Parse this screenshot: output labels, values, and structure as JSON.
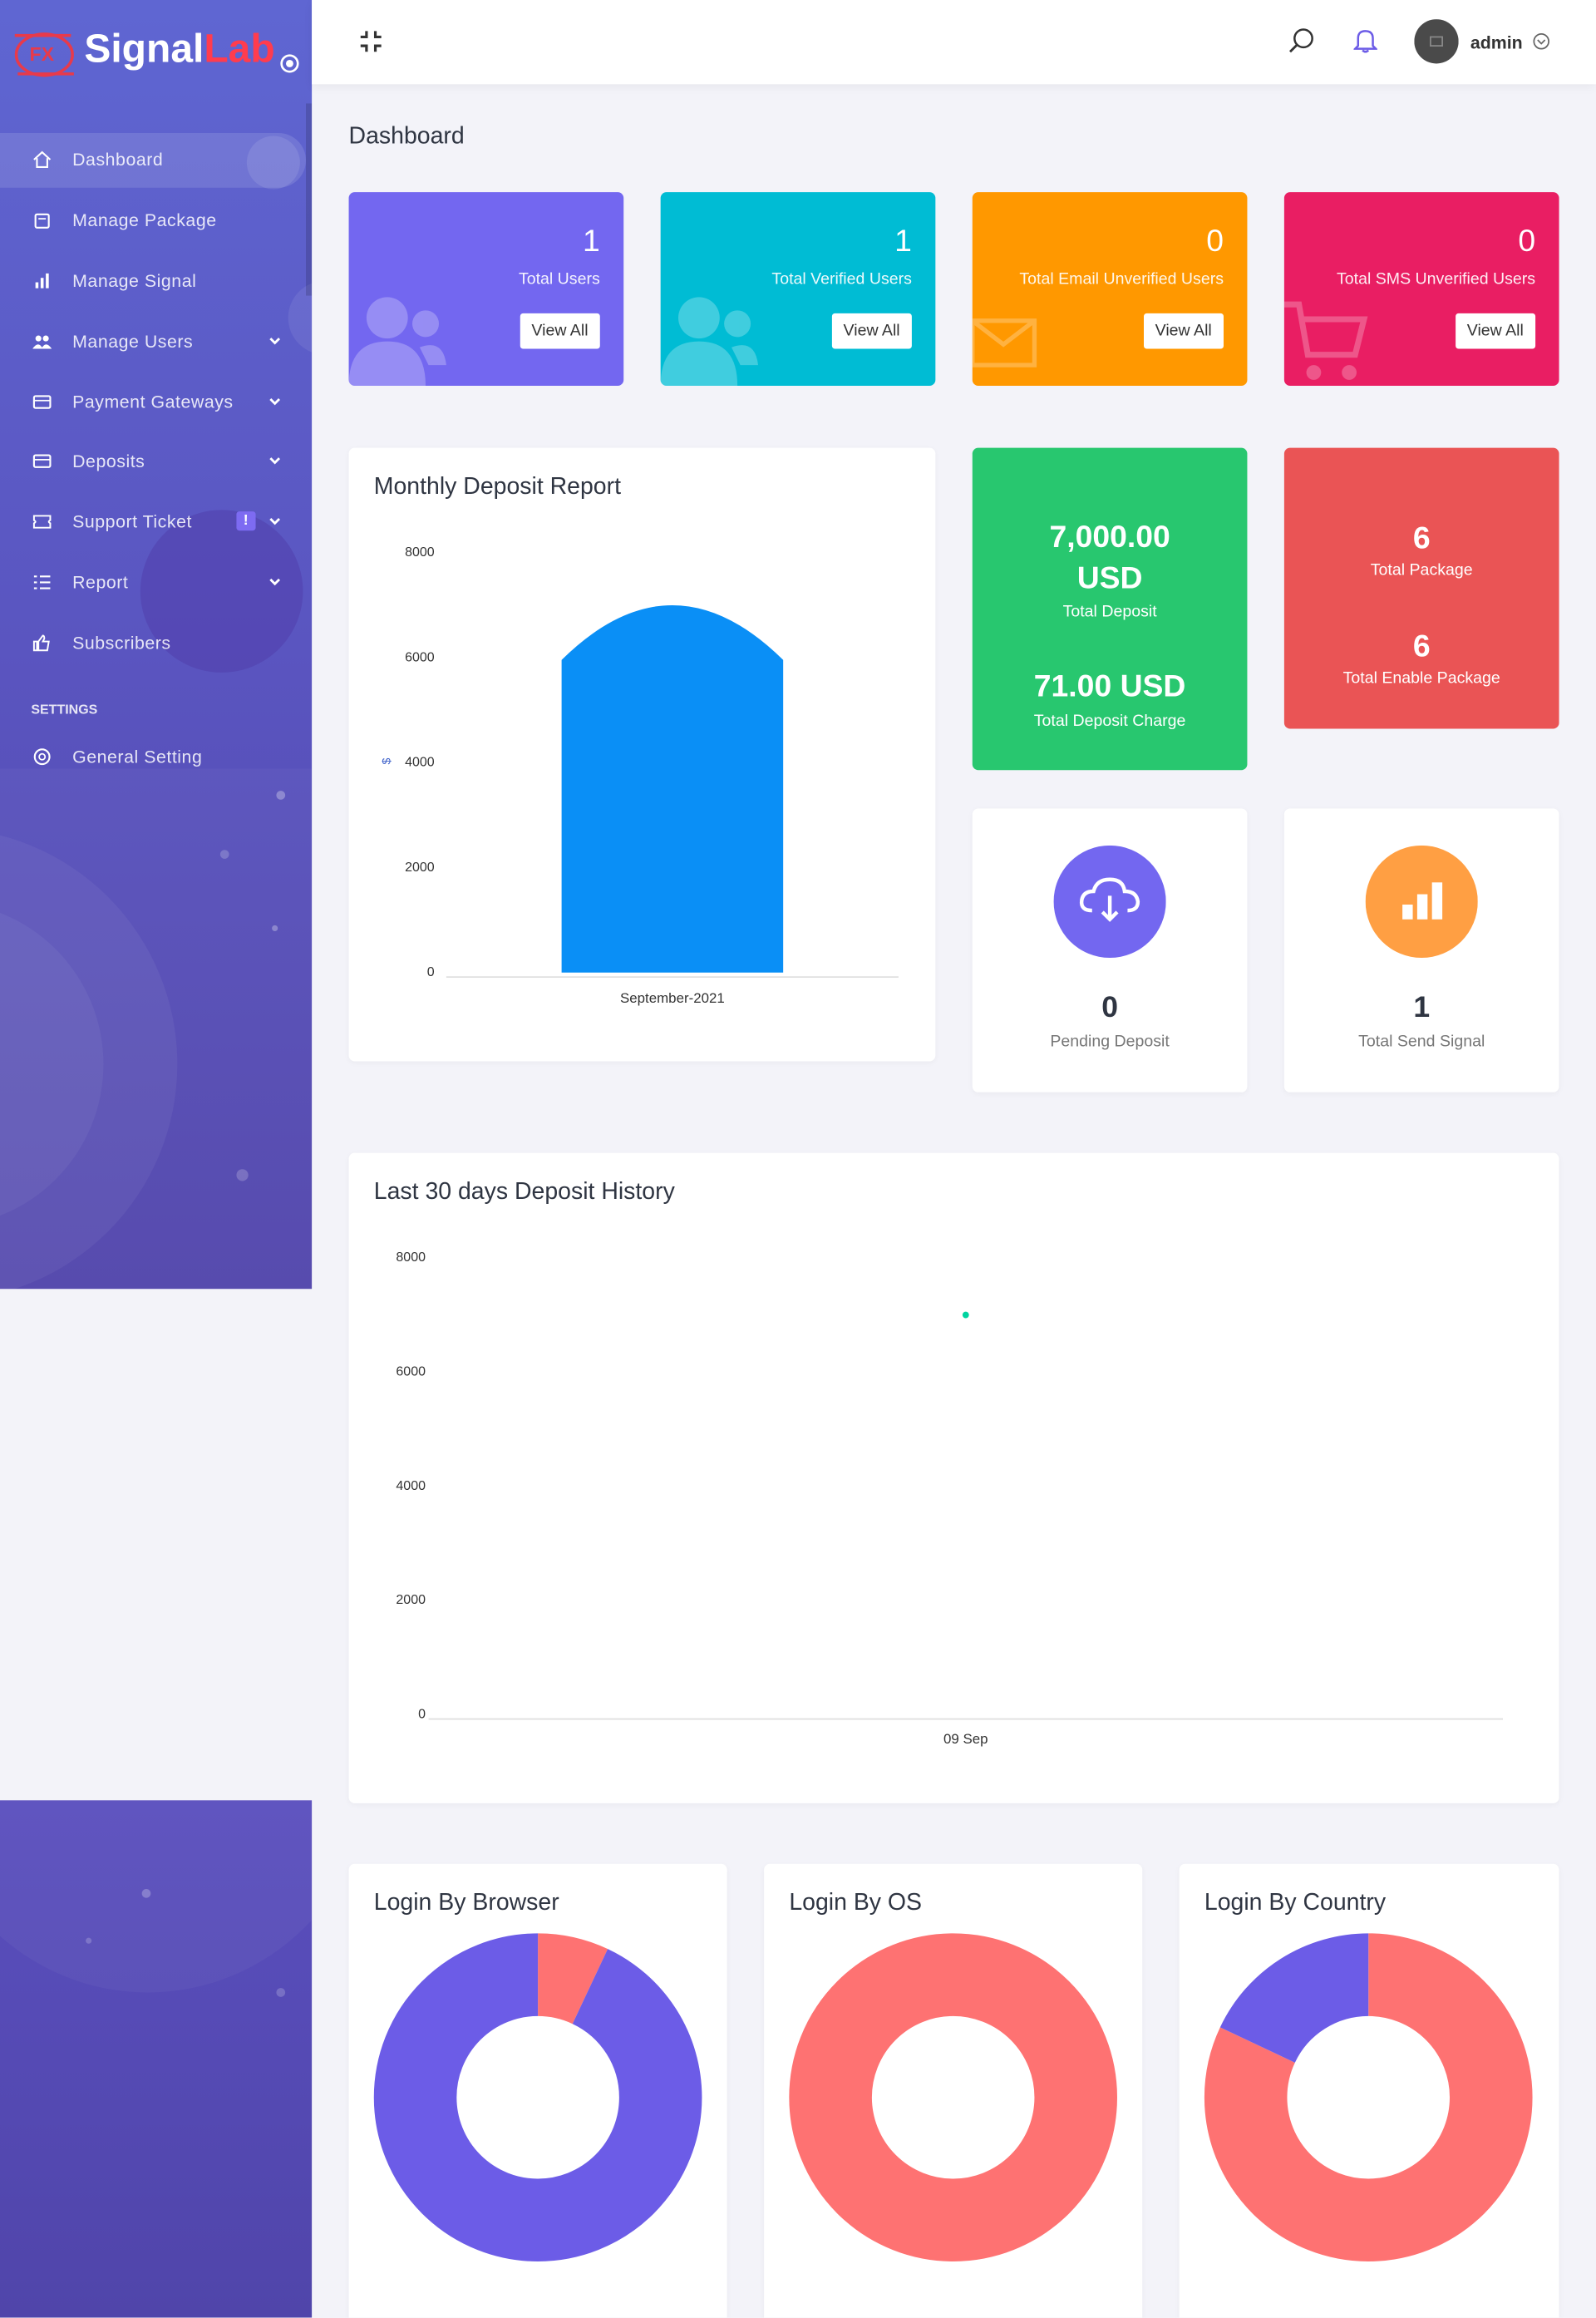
{
  "sidebar": {
    "brand": {
      "logo": "FX",
      "name_main": "Signal",
      "name_accent": "Lab"
    },
    "menu": [
      {
        "label": "Dashboard"
      },
      {
        "label": "Manage Package"
      },
      {
        "label": "Manage Signal"
      },
      {
        "label": "Manage Users"
      },
      {
        "label": "Payment Gateways"
      },
      {
        "label": "Deposits"
      },
      {
        "label": "Support Ticket",
        "badge": "!"
      },
      {
        "label": "Report"
      },
      {
        "label": "Subscribers"
      }
    ],
    "settings_heading": "SETTINGS",
    "settings_menu": [
      {
        "label": "General Setting"
      }
    ]
  },
  "header": {
    "user": "admin"
  },
  "page_title": "Dashboard",
  "stat_cards": [
    {
      "value": 1,
      "label": "Total Users",
      "button": "View All"
    },
    {
      "value": 1,
      "label": "Total Verified Users",
      "button": "View All"
    },
    {
      "value": 0,
      "label": "Total Email Unverified Users",
      "button": "View All"
    },
    {
      "value": 0,
      "label": "Total SMS Unverified Users",
      "button": "View All"
    }
  ],
  "deposit_card": {
    "amount": "7,000.00 USD",
    "amount_label": "Total Deposit",
    "charge": "71.00 USD",
    "charge_label": "Total Deposit Charge"
  },
  "package_card": {
    "total": 6,
    "total_label": "Total Package",
    "enabled": 6,
    "enabled_label": "Total Enable Package"
  },
  "widgets": [
    {
      "value": 0,
      "label": "Pending Deposit"
    },
    {
      "value": 1,
      "label": "Total Send Signal"
    }
  ],
  "chart_data": [
    {
      "type": "bar",
      "title": "Monthly Deposit Report",
      "y_label": "$",
      "categories": [
        "September-2021"
      ],
      "values": [
        7000
      ],
      "color": "#0a8ff6",
      "ylim": [
        0,
        8000
      ],
      "yticks": [
        0,
        2000,
        4000,
        6000,
        8000
      ],
      "grid": false
    },
    {
      "type": "line",
      "title": "Last 30 days Deposit History",
      "categories": [
        "09 Sep"
      ],
      "values": [
        7000
      ],
      "color": "#00d4a0",
      "ylim": [
        0,
        8000
      ],
      "yticks": [
        0,
        2000,
        4000,
        6000,
        8000
      ],
      "grid": false
    },
    {
      "type": "donut",
      "title": "Login By Browser",
      "categories": [
        null,
        null
      ],
      "values": [
        7,
        93
      ],
      "colors": [
        "#fe7272",
        "#6c5ce7"
      ]
    },
    {
      "type": "donut",
      "title": "Login By OS",
      "categories": [
        null
      ],
      "values": [
        100
      ],
      "colors": [
        "#fe7272"
      ]
    },
    {
      "type": "donut",
      "title": "Login By Country",
      "categories": [
        null,
        null
      ],
      "values": [
        82,
        18
      ],
      "colors": [
        "#fe7272",
        "#6c5ce7"
      ]
    }
  ]
}
